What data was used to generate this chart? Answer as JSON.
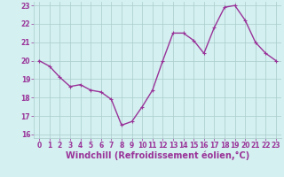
{
  "x": [
    0,
    1,
    2,
    3,
    4,
    5,
    6,
    7,
    8,
    9,
    10,
    11,
    12,
    13,
    14,
    15,
    16,
    17,
    18,
    19,
    20,
    21,
    22,
    23
  ],
  "y": [
    20.0,
    19.7,
    19.1,
    18.6,
    18.7,
    18.4,
    18.3,
    17.9,
    16.5,
    16.7,
    17.5,
    18.4,
    20.0,
    21.5,
    21.5,
    21.1,
    20.4,
    21.8,
    22.9,
    23.0,
    22.2,
    21.0,
    20.4,
    20.0
  ],
  "line_color": "#993399",
  "marker_color": "#993399",
  "bg_color": "#d4f0f0",
  "grid_color": "#aacccc",
  "xlabel": "Windchill (Refroidissement éolien,°C)",
  "xlabel_color": "#993399",
  "ylim": [
    15.8,
    23.2
  ],
  "xlim": [
    -0.5,
    23.5
  ],
  "yticks": [
    16,
    17,
    18,
    19,
    20,
    21,
    22,
    23
  ],
  "xticks": [
    0,
    1,
    2,
    3,
    4,
    5,
    6,
    7,
    8,
    9,
    10,
    11,
    12,
    13,
    14,
    15,
    16,
    17,
    18,
    19,
    20,
    21,
    22,
    23
  ],
  "tick_label_color": "#993399",
  "tick_label_fontsize": 5.5,
  "xlabel_fontsize": 7.0,
  "line_width": 1.0,
  "marker_size": 2.5
}
